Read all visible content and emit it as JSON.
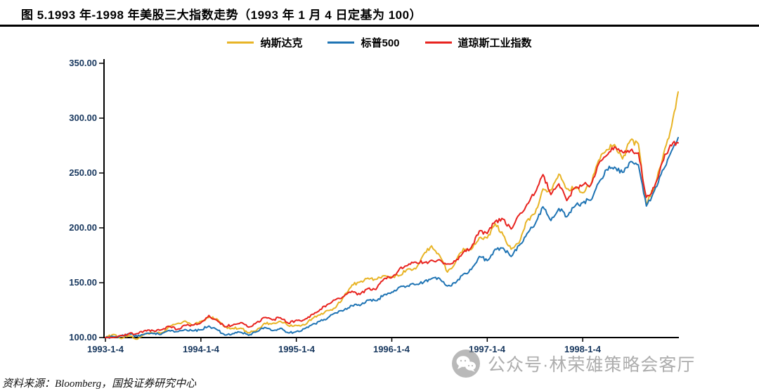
{
  "figure": {
    "title": "图 5.1993 年-1998 年美股三大指数走势（1993 年 1 月 4 日定基为 100）",
    "source_note": "资料来源：Bloomberg，国投证券研究中心",
    "watermark_text": "公众号·林荣雄策略会客厅"
  },
  "chart_data": {
    "type": "line",
    "title": "1993 年-1998 年美股三大指数走势（1993 年 1 月 4 日定基为 100）",
    "baseline_note": "1993-1-4 = 100",
    "xlabel": "",
    "ylabel": "",
    "ylim": [
      100,
      350
    ],
    "grid": false,
    "legend_position": "top-center",
    "x_tick_labels": [
      "1993-1-4",
      "1994-1-4",
      "1995-1-4",
      "1996-1-4",
      "1997-1-4",
      "1998-1-4"
    ],
    "x_tick_positions": [
      0,
      12,
      24,
      36,
      48,
      60
    ],
    "y_ticks": [
      350,
      300,
      250,
      200,
      150,
      100
    ],
    "y_tick_labels": [
      "350.00",
      "300.00",
      "250.00",
      "200.00",
      "150.00",
      "100.00"
    ],
    "x_unit": "months from 1993-01 (monthly points, index 0 = 1993-1-4)",
    "series": [
      {
        "name": "纳斯达克",
        "color": "#E8B426",
        "values": [
          100.0,
          102.8,
          99.1,
          101.9,
          98.5,
          103.5,
          104.0,
          104.1,
          109.7,
          112.7,
          115.1,
          111.4,
          114.8,
          118.2,
          117.1,
          109.7,
          108.4,
          108.6,
          104.3,
          106.6,
          113.1,
          112.9,
          114.8,
          110.8,
          111.1,
          111.5,
          117.3,
          120.7,
          124.7,
          127.8,
          137.8,
          147.9,
          150.7,
          154.2,
          153.0,
          156.4,
          155.4,
          156.6,
          162.5,
          162.6,
          175.9,
          183.6,
          175.0,
          159.7,
          168.5,
          181.2,
          180.4,
          191.0,
          190.7,
          203.8,
          193.4,
          180.5,
          186.3,
          206.8,
          213.0,
          235.5,
          234.4,
          249.0,
          235.5,
          236.5,
          231.9,
          239.1,
          261.6,
          271.2,
          275.9,
          262.8,
          279.9,
          276.5,
          221.4,
          237.0,
          261.6,
          288.0,
          323.9
        ]
      },
      {
        "name": "标普500",
        "color": "#1F74B4",
        "values": [
          100.0,
          100.8,
          101.8,
          103.7,
          101.1,
          103.4,
          103.5,
          102.9,
          106.5,
          105.4,
          107.4,
          106.1,
          107.1,
          110.6,
          107.3,
          102.4,
          103.6,
          104.8,
          102.0,
          105.3,
          109.2,
          106.3,
          108.5,
          104.2,
          105.5,
          108.0,
          111.9,
          115.0,
          118.2,
          122.5,
          125.1,
          129.1,
          129.1,
          134.2,
          133.6,
          139.0,
          141.5,
          146.1,
          147.1,
          148.3,
          150.3,
          153.7,
          154.0,
          147.0,
          149.7,
          157.9,
          162.0,
          173.9,
          170.1,
          180.6,
          181.6,
          173.9,
          184.0,
          194.8,
          203.3,
          219.2,
          206.6,
          217.6,
          210.1,
          219.4,
          222.9,
          225.2,
          241.0,
          253.1,
          255.4,
          250.5,
          260.4,
          257.4,
          219.9,
          233.6,
          252.3,
          267.3,
          282.3
        ]
      },
      {
        "name": "道琼斯工业指数",
        "color": "#E8231F",
        "values": [
          100.0,
          100.0,
          101.9,
          103.8,
          103.6,
          106.6,
          106.3,
          107.0,
          110.3,
          107.4,
          111.2,
          111.3,
          113.4,
          120.2,
          115.8,
          109.9,
          111.3,
          113.6,
          109.5,
          113.8,
          118.3,
          116.1,
          118.1,
          113.0,
          115.9,
          116.2,
          121.2,
          125.7,
          130.6,
          134.9,
          137.7,
          142.3,
          139.3,
          144.7,
          143.7,
          153.4,
          154.6,
          163.0,
          165.8,
          168.8,
          168.3,
          170.5,
          170.9,
          167.1,
          169.7,
          177.8,
          182.2,
          197.1,
          194.9,
          205.9,
          207.9,
          199.0,
          211.8,
          221.5,
          231.9,
          248.5,
          230.3,
          240.1,
          224.9,
          236.4,
          239.0,
          239.0,
          258.3,
          265.9,
          273.9,
          269.0,
          270.5,
          268.4,
          227.8,
          237.0,
          259.7,
          275.5,
          277.5
        ]
      }
    ]
  }
}
